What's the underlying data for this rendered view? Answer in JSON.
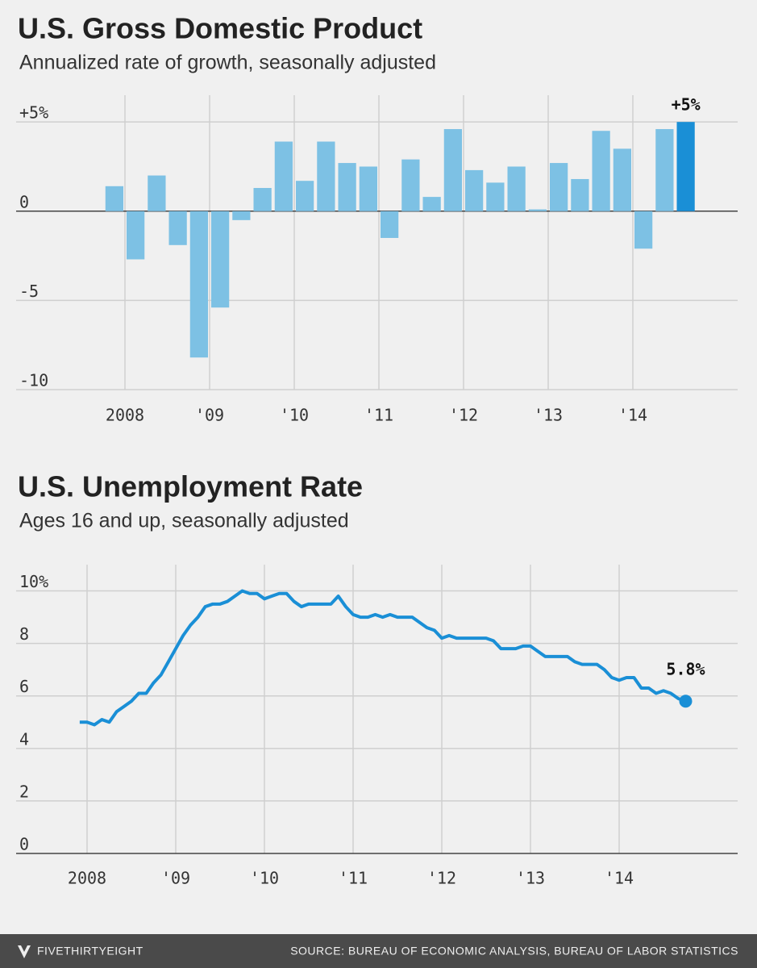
{
  "chart_data": [
    {
      "type": "bar",
      "title": "U.S. Gross Domestic Product",
      "subtitle": "Annualized rate of growth, seasonally adjusted",
      "x": [
        2007.75,
        2008,
        2008.25,
        2008.5,
        2008.75,
        2009,
        2009.25,
        2009.5,
        2009.75,
        2010,
        2010.25,
        2010.5,
        2010.75,
        2011,
        2011.25,
        2011.5,
        2011.75,
        2012,
        2012.25,
        2012.5,
        2012.75,
        2013,
        2013.25,
        2013.5,
        2013.75,
        2014,
        2014.25,
        2014.5
      ],
      "values": [
        1.4,
        -2.7,
        2.0,
        -1.9,
        -8.2,
        -5.4,
        -0.5,
        1.3,
        3.9,
        1.7,
        3.9,
        2.7,
        2.5,
        -1.5,
        2.9,
        0.8,
        4.6,
        2.3,
        1.6,
        2.5,
        0.1,
        2.7,
        1.8,
        4.5,
        3.5,
        -2.1,
        4.6,
        5.0
      ],
      "colors": [
        "#7dc1e4",
        "#7dc1e4",
        "#7dc1e4",
        "#7dc1e4",
        "#7dc1e4",
        "#7dc1e4",
        "#7dc1e4",
        "#7dc1e4",
        "#7dc1e4",
        "#7dc1e4",
        "#7dc1e4",
        "#7dc1e4",
        "#7dc1e4",
        "#7dc1e4",
        "#7dc1e4",
        "#7dc1e4",
        "#7dc1e4",
        "#7dc1e4",
        "#7dc1e4",
        "#7dc1e4",
        "#7dc1e4",
        "#7dc1e4",
        "#7dc1e4",
        "#7dc1e4",
        "#7dc1e4",
        "#7dc1e4",
        "#7dc1e4",
        "#1a8fd6"
      ],
      "xlim": [
        2007.5,
        2015.25
      ],
      "xticks": [
        {
          "value": 2008,
          "label": "2008"
        },
        {
          "value": 2009,
          "label": "'09"
        },
        {
          "value": 2010,
          "label": "'10"
        },
        {
          "value": 2011,
          "label": "'11"
        },
        {
          "value": 2012,
          "label": "'12"
        },
        {
          "value": 2013,
          "label": "'13"
        },
        {
          "value": 2014,
          "label": "'14"
        }
      ],
      "ylim": [
        -10,
        6.5
      ],
      "yticks": [
        {
          "value": 5,
          "label": "+5%"
        },
        0,
        -5,
        -10
      ],
      "annotation": "+5%",
      "grid": true
    },
    {
      "type": "line",
      "title": "U.S. Unemployment Rate",
      "subtitle": "Ages 16 and up, seasonally adjusted",
      "x": [
        2007.917,
        2008,
        2008.083,
        2008.167,
        2008.25,
        2008.333,
        2008.417,
        2008.5,
        2008.583,
        2008.667,
        2008.75,
        2008.833,
        2008.917,
        2009,
        2009.083,
        2009.167,
        2009.25,
        2009.333,
        2009.417,
        2009.5,
        2009.583,
        2009.667,
        2009.75,
        2009.833,
        2009.917,
        2010,
        2010.083,
        2010.167,
        2010.25,
        2010.333,
        2010.417,
        2010.5,
        2010.583,
        2010.667,
        2010.75,
        2010.833,
        2010.917,
        2011,
        2011.083,
        2011.167,
        2011.25,
        2011.333,
        2011.417,
        2011.5,
        2011.583,
        2011.667,
        2011.75,
        2011.833,
        2011.917,
        2012,
        2012.083,
        2012.167,
        2012.25,
        2012.333,
        2012.417,
        2012.5,
        2012.583,
        2012.667,
        2012.75,
        2012.833,
        2012.917,
        2013,
        2013.083,
        2013.167,
        2013.25,
        2013.333,
        2013.417,
        2013.5,
        2013.583,
        2013.667,
        2013.75,
        2013.833,
        2013.917,
        2014,
        2014.083,
        2014.167,
        2014.25,
        2014.333,
        2014.417,
        2014.5,
        2014.583,
        2014.667,
        2014.75
      ],
      "values": [
        5.0,
        5.0,
        4.9,
        5.1,
        5.0,
        5.4,
        5.6,
        5.8,
        6.1,
        6.1,
        6.5,
        6.8,
        7.3,
        7.8,
        8.3,
        8.7,
        9.0,
        9.4,
        9.5,
        9.5,
        9.6,
        9.8,
        10.0,
        9.9,
        9.9,
        9.7,
        9.8,
        9.9,
        9.9,
        9.6,
        9.4,
        9.5,
        9.5,
        9.5,
        9.5,
        9.8,
        9.4,
        9.1,
        9.0,
        9.0,
        9.1,
        9.0,
        9.1,
        9.0,
        9.0,
        9.0,
        8.8,
        8.6,
        8.5,
        8.2,
        8.3,
        8.2,
        8.2,
        8.2,
        8.2,
        8.2,
        8.1,
        7.8,
        7.8,
        7.8,
        7.9,
        7.9,
        7.7,
        7.5,
        7.5,
        7.5,
        7.5,
        7.3,
        7.2,
        7.2,
        7.2,
        7.0,
        6.7,
        6.6,
        6.7,
        6.7,
        6.3,
        6.3,
        6.1,
        6.2,
        6.1,
        5.9,
        5.8
      ],
      "color": "#1a8fd6",
      "xlim": [
        2007.5,
        2015.25
      ],
      "xticks": [
        {
          "value": 2008,
          "label": "2008"
        },
        {
          "value": 2009,
          "label": "'09"
        },
        {
          "value": 2010,
          "label": "'10"
        },
        {
          "value": 2011,
          "label": "'11"
        },
        {
          "value": 2012,
          "label": "'12"
        },
        {
          "value": 2013,
          "label": "'13"
        },
        {
          "value": 2014,
          "label": "'14"
        }
      ],
      "ylim": [
        0,
        11
      ],
      "yticks": [
        {
          "value": 10,
          "label": "10%"
        },
        8,
        6,
        4,
        2,
        0
      ],
      "annotation": "5.8%",
      "grid": true
    }
  ],
  "footer": {
    "brand": "FIVETHIRTYEIGHT",
    "source": "SOURCE: BUREAU OF ECONOMIC ANALYSIS, BUREAU OF LABOR STATISTICS"
  }
}
